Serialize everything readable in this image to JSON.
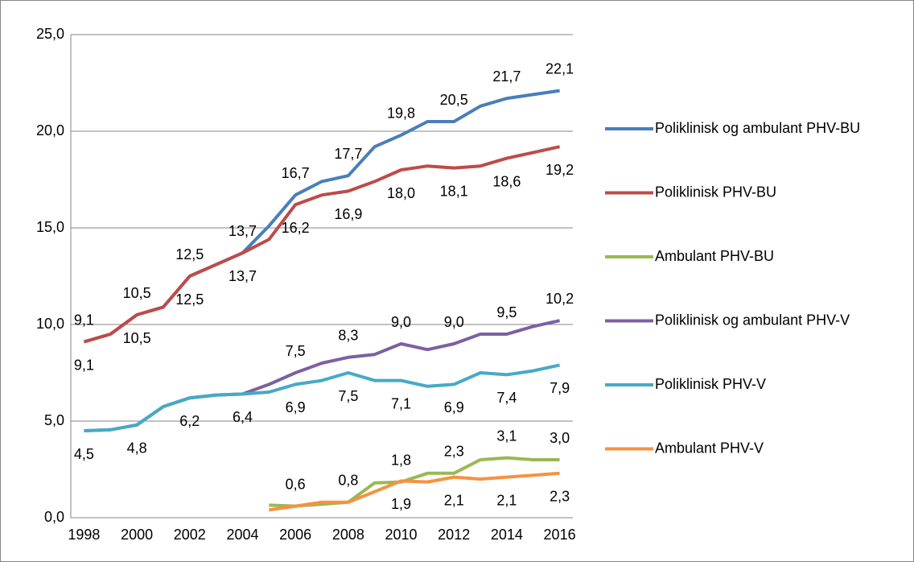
{
  "chart_data": {
    "type": "line",
    "categories": [
      "1998",
      null,
      "2000",
      null,
      "2002",
      null,
      "2004",
      null,
      "2006",
      null,
      "2008",
      null,
      "2010",
      null,
      "2012",
      null,
      "2014",
      null,
      "2016"
    ],
    "ylim": [
      0,
      25
    ],
    "yticks": [
      {
        "value": 0,
        "label": "0,0"
      },
      {
        "value": 5,
        "label": "5,0"
      },
      {
        "value": 10,
        "label": "10,0"
      },
      {
        "value": 15,
        "label": "15,0"
      },
      {
        "value": 20,
        "label": "20,0"
      },
      {
        "value": 25,
        "label": "25,0"
      }
    ],
    "grid": true,
    "legend": "right",
    "series": [
      {
        "name": "Poliklinisk og ambulant PHV-BU",
        "color": "#4a7ebb",
        "label_position": "above",
        "values": [
          9.1,
          9.5,
          10.5,
          10.9,
          12.5,
          13.1,
          13.7,
          15.1,
          16.7,
          17.4,
          17.7,
          19.2,
          19.8,
          20.5,
          20.5,
          21.3,
          21.7,
          21.9,
          22.1
        ],
        "value_labels": [
          "9,1",
          null,
          "10,5",
          null,
          "12,5",
          null,
          "13,7",
          null,
          "16,7",
          null,
          "17,7",
          null,
          "19,8",
          null,
          "20,5",
          null,
          "21,7",
          null,
          "22,1"
        ]
      },
      {
        "name": "Poliklinisk PHV-BU",
        "color": "#be4b48",
        "label_position": "below",
        "values": [
          9.1,
          9.5,
          10.5,
          10.9,
          12.5,
          13.1,
          13.7,
          14.4,
          16.2,
          16.7,
          16.9,
          17.4,
          18.0,
          18.2,
          18.1,
          18.2,
          18.6,
          18.9,
          19.2
        ],
        "value_labels": [
          "9,1",
          null,
          "10,5",
          null,
          "12,5",
          null,
          "13,7",
          null,
          "16,2",
          null,
          "16,9",
          null,
          "18,0",
          null,
          "18,1",
          null,
          "18,6",
          null,
          "19,2"
        ]
      },
      {
        "name": "Ambulant PHV-BU",
        "color": "#98b954",
        "label_position": "above",
        "values": [
          null,
          null,
          null,
          null,
          null,
          null,
          null,
          0.65,
          0.6,
          0.7,
          0.8,
          1.8,
          1.85,
          2.3,
          2.3,
          3.0,
          3.1,
          3.0,
          3.0
        ],
        "value_labels": [
          null,
          null,
          null,
          null,
          null,
          null,
          null,
          null,
          "0,6",
          null,
          "0,8",
          null,
          "1,8",
          null,
          "2,3",
          null,
          "3,1",
          null,
          "3,0"
        ]
      },
      {
        "name": "Poliklinisk og ambulant PHV-V",
        "color": "#7d60a0",
        "label_position": "above",
        "values": [
          4.5,
          4.55,
          4.8,
          5.75,
          6.2,
          6.35,
          6.4,
          6.9,
          7.5,
          8.0,
          8.3,
          8.45,
          9.0,
          8.7,
          9.0,
          9.5,
          9.5,
          9.9,
          10.2
        ],
        "value_labels": [
          null,
          null,
          null,
          null,
          null,
          null,
          null,
          null,
          "7,5",
          null,
          "8,3",
          null,
          "9,0",
          null,
          "9,0",
          null,
          "9,5",
          null,
          "10,2"
        ]
      },
      {
        "name": "Poliklinisk PHV-V",
        "color": "#46aac5",
        "label_position": "below",
        "values": [
          4.5,
          4.55,
          4.8,
          5.75,
          6.2,
          6.35,
          6.4,
          6.5,
          6.9,
          7.1,
          7.5,
          7.1,
          7.1,
          6.8,
          6.9,
          7.5,
          7.4,
          7.6,
          7.9
        ],
        "value_labels": [
          "4,5",
          null,
          "4,8",
          null,
          "6,2",
          null,
          "6,4",
          null,
          "6,9",
          null,
          "7,5",
          null,
          "7,1",
          null,
          "6,9",
          null,
          "7,4",
          null,
          "7,9"
        ]
      },
      {
        "name": "Ambulant PHV-V",
        "color": "#f69240",
        "label_position": "below",
        "values": [
          null,
          null,
          null,
          null,
          null,
          null,
          null,
          0.4,
          0.6,
          0.8,
          0.8,
          1.35,
          1.9,
          1.85,
          2.1,
          2.0,
          2.1,
          2.2,
          2.3
        ],
        "value_labels": [
          null,
          null,
          null,
          null,
          null,
          null,
          null,
          null,
          null,
          null,
          null,
          null,
          "1,9",
          null,
          "2,1",
          null,
          "2,1",
          null,
          "2,3"
        ]
      }
    ]
  }
}
